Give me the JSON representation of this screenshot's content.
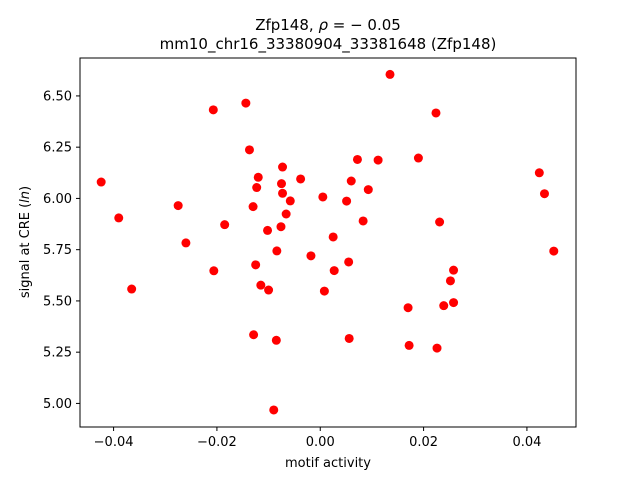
{
  "chart_data": {
    "type": "scatter",
    "title_line1_prefix": "Zfp148, ",
    "title_line1_rho": "ρ",
    "title_line1_suffix": " = − 0.05",
    "title_line2": "mm10_chr16_33380904_33381648 (Zfp148)",
    "xlabel": "motif activity",
    "ylabel_prefix": "signal at CRE (",
    "ylabel_italic": "ln",
    "ylabel_suffix": ")",
    "xlim": [
      -0.0465,
      0.0495
    ],
    "ylim": [
      4.885,
      6.685
    ],
    "x_ticks": [
      -0.04,
      -0.02,
      0.0,
      0.02,
      0.04
    ],
    "x_tick_labels": [
      "−0.04",
      "−0.02",
      "0.00",
      "0.02",
      "0.04"
    ],
    "y_ticks": [
      5.0,
      5.25,
      5.5,
      5.75,
      6.0,
      6.25,
      6.5
    ],
    "y_tick_labels": [
      "5.00",
      "5.25",
      "5.50",
      "5.75",
      "6.00",
      "6.25",
      "6.50"
    ],
    "marker_color": "#ff0000",
    "grid": false,
    "points": [
      {
        "x": -0.0424,
        "y": 6.08
      },
      {
        "x": -0.039,
        "y": 5.905
      },
      {
        "x": -0.0365,
        "y": 5.558
      },
      {
        "x": -0.0275,
        "y": 5.965
      },
      {
        "x": -0.026,
        "y": 5.783
      },
      {
        "x": -0.0207,
        "y": 6.432
      },
      {
        "x": -0.0206,
        "y": 5.647
      },
      {
        "x": -0.0185,
        "y": 5.872
      },
      {
        "x": -0.0144,
        "y": 6.465
      },
      {
        "x": -0.0137,
        "y": 6.237
      },
      {
        "x": -0.013,
        "y": 5.96
      },
      {
        "x": -0.0129,
        "y": 5.335
      },
      {
        "x": -0.0125,
        "y": 5.676
      },
      {
        "x": -0.0123,
        "y": 6.053
      },
      {
        "x": -0.012,
        "y": 6.103
      },
      {
        "x": -0.0115,
        "y": 5.577
      },
      {
        "x": -0.0102,
        "y": 5.844
      },
      {
        "x": -0.01,
        "y": 5.553
      },
      {
        "x": -0.009,
        "y": 4.968
      },
      {
        "x": -0.0085,
        "y": 5.308
      },
      {
        "x": -0.0084,
        "y": 5.744
      },
      {
        "x": -0.0076,
        "y": 5.862
      },
      {
        "x": -0.0075,
        "y": 6.072
      },
      {
        "x": -0.0073,
        "y": 6.153
      },
      {
        "x": -0.0073,
        "y": 6.025
      },
      {
        "x": -0.0066,
        "y": 5.924
      },
      {
        "x": -0.0058,
        "y": 5.988
      },
      {
        "x": -0.0038,
        "y": 6.095
      },
      {
        "x": -0.0018,
        "y": 5.72
      },
      {
        "x": 0.0005,
        "y": 6.007
      },
      {
        "x": 0.0008,
        "y": 5.548
      },
      {
        "x": 0.0025,
        "y": 5.812
      },
      {
        "x": 0.0027,
        "y": 5.648
      },
      {
        "x": 0.0051,
        "y": 5.987
      },
      {
        "x": 0.0055,
        "y": 5.69
      },
      {
        "x": 0.0056,
        "y": 5.317
      },
      {
        "x": 0.006,
        "y": 6.085
      },
      {
        "x": 0.0072,
        "y": 6.19
      },
      {
        "x": 0.0083,
        "y": 5.89
      },
      {
        "x": 0.0093,
        "y": 6.043
      },
      {
        "x": 0.0112,
        "y": 6.187
      },
      {
        "x": 0.0135,
        "y": 6.605
      },
      {
        "x": 0.017,
        "y": 5.467
      },
      {
        "x": 0.0172,
        "y": 5.283
      },
      {
        "x": 0.019,
        "y": 6.197
      },
      {
        "x": 0.0224,
        "y": 6.417
      },
      {
        "x": 0.0226,
        "y": 5.27
      },
      {
        "x": 0.0231,
        "y": 5.885
      },
      {
        "x": 0.0239,
        "y": 5.477
      },
      {
        "x": 0.0252,
        "y": 5.598
      },
      {
        "x": 0.0258,
        "y": 5.65
      },
      {
        "x": 0.0258,
        "y": 5.492
      },
      {
        "x": 0.0424,
        "y": 6.125
      },
      {
        "x": 0.0434,
        "y": 6.023
      },
      {
        "x": 0.0452,
        "y": 5.743
      }
    ]
  }
}
